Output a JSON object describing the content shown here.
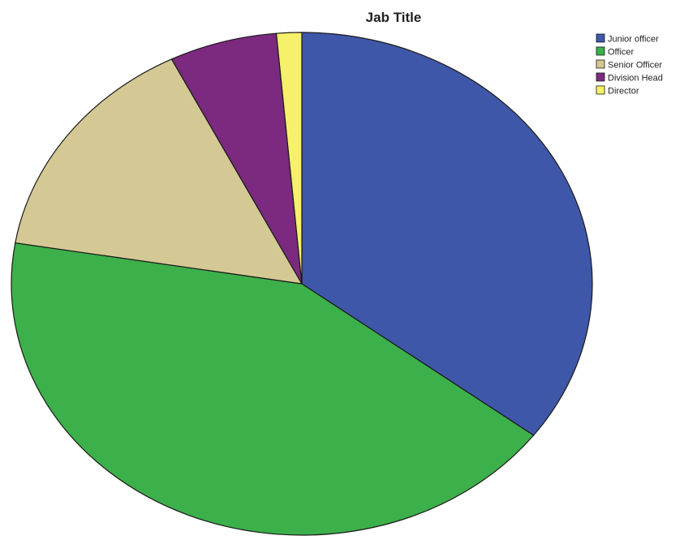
{
  "chart_data": {
    "type": "pie",
    "title": "Jab Title",
    "legend_position": "top-right",
    "start_angle_deg": 0,
    "direction": "clockwise",
    "slices": [
      {
        "label": "Junior officer",
        "value": 35.3,
        "color": "#3f57a8"
      },
      {
        "label": "Officer",
        "value": 42.3,
        "color": "#3cb04a"
      },
      {
        "label": "Senior Officer",
        "value": 15.0,
        "color": "#d4c994"
      },
      {
        "label": "Division Head",
        "value": 6.0,
        "color": "#7b2a7f"
      },
      {
        "label": "Director",
        "value": 1.4,
        "color": "#f6f06a"
      }
    ]
  }
}
